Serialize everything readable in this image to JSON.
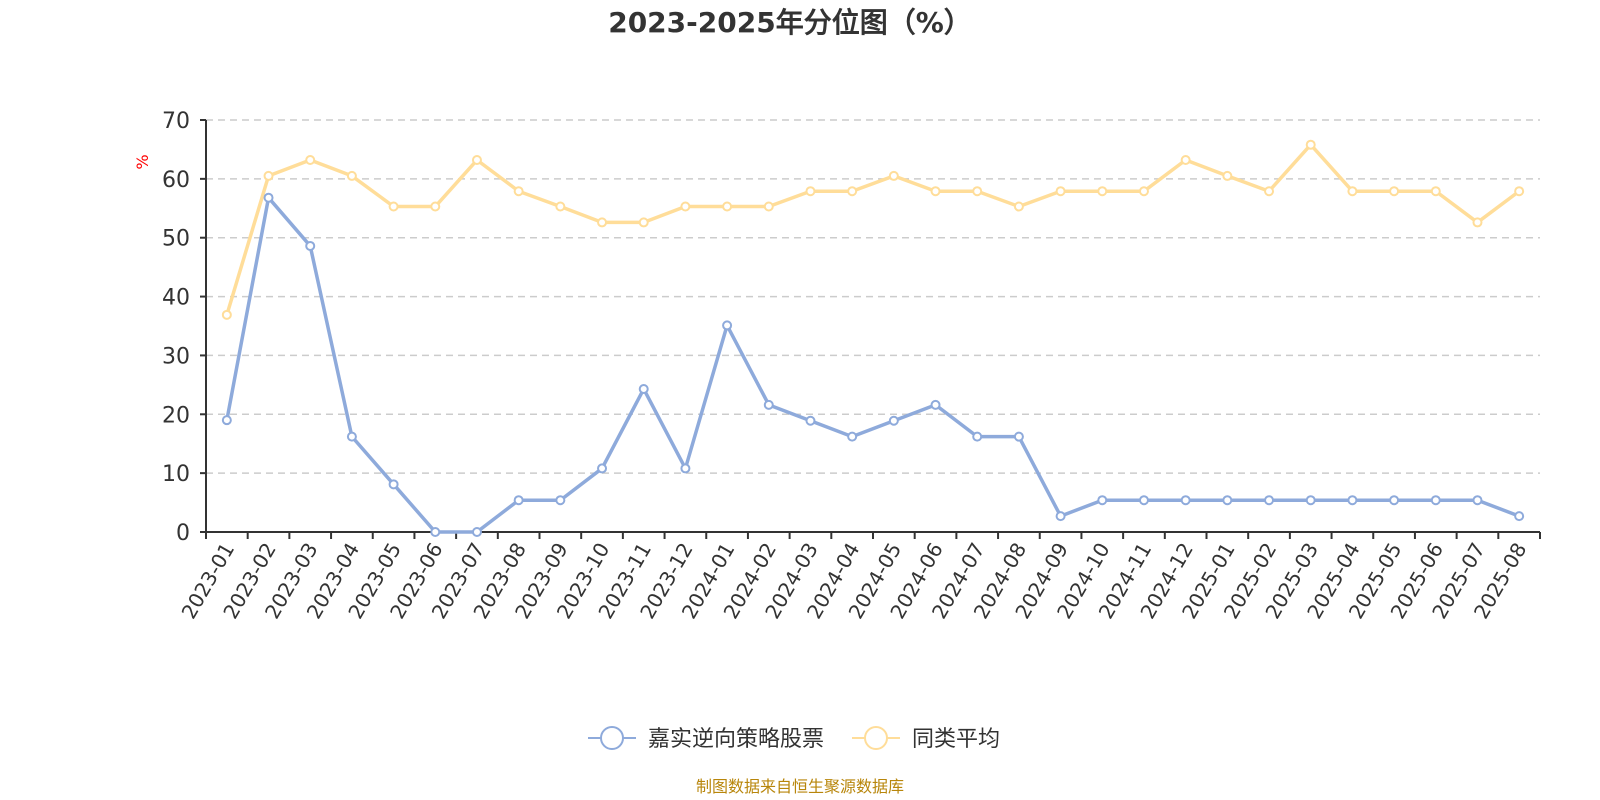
{
  "chart_data": {
    "type": "line",
    "title": "2023-2025年分位图（%）",
    "ylabel": "%",
    "ylim": [
      0,
      70
    ],
    "yticks": [
      0,
      10,
      20,
      30,
      40,
      50,
      60,
      70
    ],
    "grid": true,
    "legend_position": "bottom",
    "categories": [
      "2023-01",
      "2023-02",
      "2023-03",
      "2023-04",
      "2023-05",
      "2023-06",
      "2023-07",
      "2023-08",
      "2023-09",
      "2023-10",
      "2023-11",
      "2023-12",
      "2024-01",
      "2024-02",
      "2024-03",
      "2024-04",
      "2024-05",
      "2024-06",
      "2024-07",
      "2024-08",
      "2024-09",
      "2024-10",
      "2024-11",
      "2024-12",
      "2025-01",
      "2025-02",
      "2025-03",
      "2025-04",
      "2025-05",
      "2025-06",
      "2025-07",
      "2025-08"
    ],
    "series": [
      {
        "name": "嘉实逆向策略股票",
        "color": "#8eaadb",
        "values": [
          19.0,
          56.8,
          48.6,
          16.2,
          8.1,
          0.0,
          0.0,
          5.4,
          5.4,
          10.8,
          24.3,
          10.8,
          35.1,
          21.6,
          18.9,
          16.2,
          18.9,
          21.6,
          16.2,
          16.2,
          2.7,
          5.4,
          5.4,
          5.4,
          5.4,
          5.4,
          5.4,
          5.4,
          5.4,
          5.4,
          5.4,
          2.7
        ]
      },
      {
        "name": "同类平均",
        "color": "#ffdd99",
        "values": [
          36.9,
          60.5,
          63.2,
          60.5,
          55.3,
          55.3,
          63.2,
          57.9,
          55.3,
          52.6,
          52.6,
          55.3,
          55.3,
          55.3,
          57.9,
          57.9,
          60.5,
          57.9,
          57.9,
          55.3,
          57.9,
          57.9,
          57.9,
          63.2,
          60.5,
          57.9,
          65.8,
          57.9,
          57.9,
          57.9,
          52.6,
          57.9
        ]
      }
    ]
  },
  "source": "制图数据来自恒生聚源数据库"
}
